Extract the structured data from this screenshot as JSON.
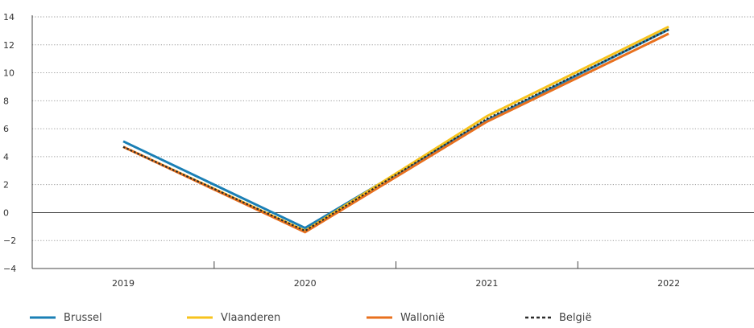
{
  "chart_data": {
    "type": "line",
    "title": "",
    "xlabel": "",
    "ylabel": "",
    "categories": [
      "2019",
      "2020",
      "2021",
      "2022"
    ],
    "ylim": [
      -4,
      14
    ],
    "yticks": [
      14,
      12,
      10,
      8,
      6,
      4,
      2,
      0,
      -2,
      -4
    ],
    "ytick_labels": [
      "14",
      "12",
      "10",
      "8",
      "6",
      "4",
      "2",
      "0",
      "−2",
      "−4"
    ],
    "grid": "horizontal-dotted",
    "legend_position": "bottom",
    "series": [
      {
        "name": "Brussel",
        "values": [
          5.1,
          -1.1,
          6.6,
          13.1
        ],
        "color": "#1a7fb5",
        "style": "solid"
      },
      {
        "name": "Vlaanderen",
        "values": [
          4.7,
          -1.3,
          6.9,
          13.3
        ],
        "color": "#f7c31c",
        "style": "solid"
      },
      {
        "name": "Wallonië",
        "values": [
          4.7,
          -1.4,
          6.5,
          12.8
        ],
        "color": "#e8701e",
        "style": "solid"
      },
      {
        "name": "België",
        "values": [
          4.7,
          -1.3,
          6.7,
          13.1
        ],
        "color": "#2b2b2b",
        "style": "dotted"
      }
    ]
  }
}
